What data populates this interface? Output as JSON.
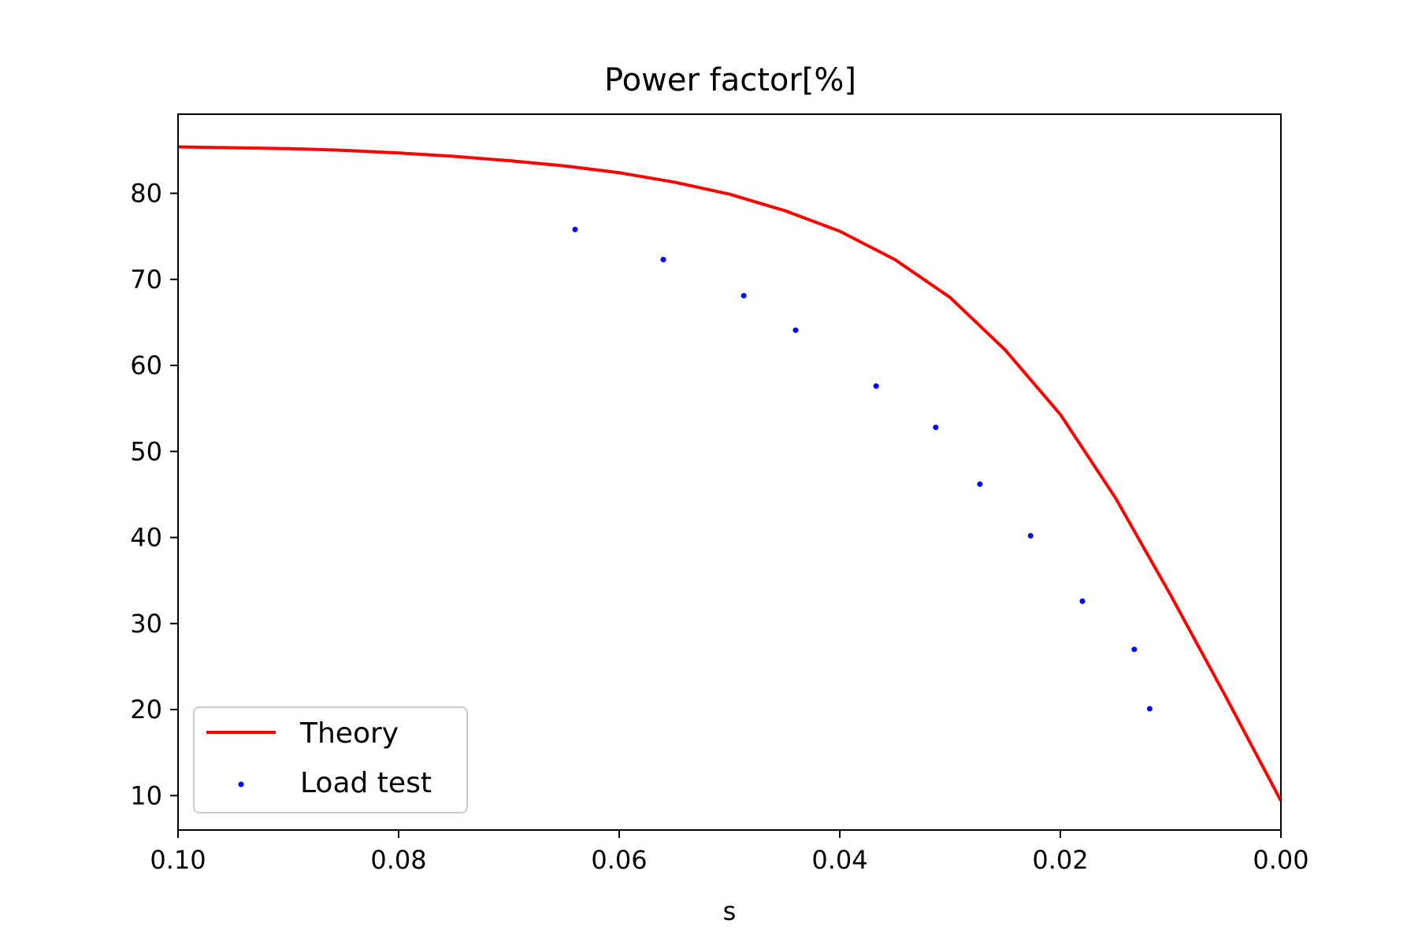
{
  "chart_data": {
    "type": "line",
    "title": "Power factor[%]",
    "xlabel": "s",
    "ylabel": "",
    "xlim": [
      0.1,
      0.0
    ],
    "ylim": [
      6,
      89.2
    ],
    "x_reversed": true,
    "grid": false,
    "legend_position": "lower-left",
    "x_ticks": [
      {
        "value": 0.1,
        "label": "0.10"
      },
      {
        "value": 0.08,
        "label": "0.08"
      },
      {
        "value": 0.06,
        "label": "0.06"
      },
      {
        "value": 0.04,
        "label": "0.04"
      },
      {
        "value": 0.02,
        "label": "0.02"
      },
      {
        "value": 0.0,
        "label": "0.00"
      }
    ],
    "y_ticks": [
      {
        "value": 10,
        "label": "10"
      },
      {
        "value": 20,
        "label": "20"
      },
      {
        "value": 30,
        "label": "30"
      },
      {
        "value": 40,
        "label": "40"
      },
      {
        "value": 50,
        "label": "50"
      },
      {
        "value": 60,
        "label": "60"
      },
      {
        "value": 70,
        "label": "70"
      },
      {
        "value": 80,
        "label": "80"
      }
    ],
    "series": [
      {
        "name": "Theory",
        "kind": "line",
        "color": "#ff0000",
        "x": [
          0.1,
          0.095,
          0.09,
          0.085,
          0.08,
          0.075,
          0.07,
          0.065,
          0.06,
          0.055,
          0.05,
          0.045,
          0.04,
          0.035,
          0.03,
          0.025,
          0.02,
          0.015,
          0.01,
          0.005,
          0.0
        ],
        "y": [
          85.4,
          85.3,
          85.2,
          85.0,
          84.7,
          84.3,
          83.8,
          83.2,
          82.4,
          81.3,
          79.9,
          78.0,
          75.6,
          72.3,
          67.9,
          61.8,
          54.3,
          44.6,
          33.3,
          21.5,
          9.4
        ]
      },
      {
        "name": "Load test",
        "kind": "scatter",
        "color": "#0000ff",
        "x": [
          0.064,
          0.056,
          0.0487,
          0.044,
          0.0367,
          0.0313,
          0.0273,
          0.0227,
          0.018,
          0.0133,
          0.0119
        ],
        "y": [
          75.8,
          72.3,
          68.1,
          64.1,
          57.6,
          52.8,
          46.2,
          40.2,
          32.6,
          27.0,
          20.1
        ]
      }
    ]
  }
}
